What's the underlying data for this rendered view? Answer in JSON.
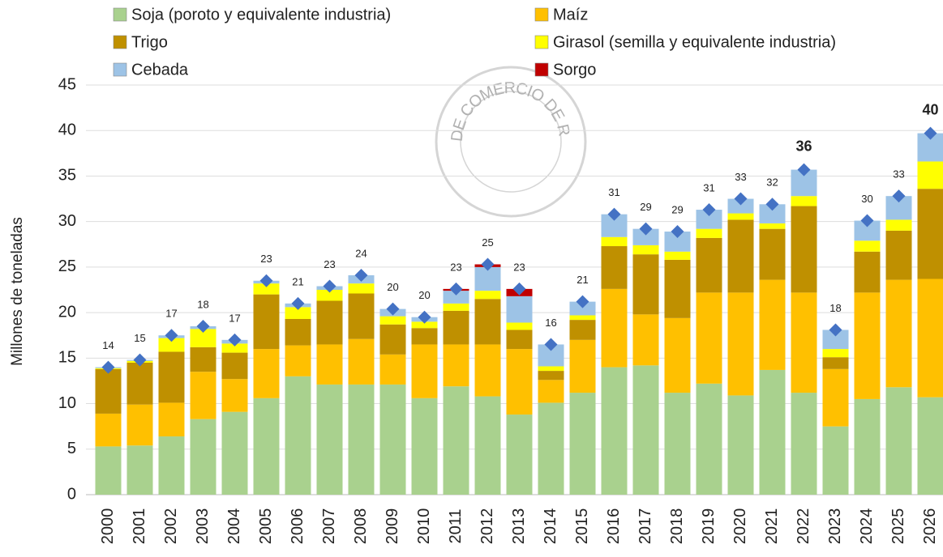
{
  "chart_data": {
    "type": "stacked_bar",
    "y_label": "Millones de toneladas",
    "watermark": "BOLSA DE COMERCIO DE ROSARIO",
    "categories": [
      "2000",
      "2001",
      "2002",
      "2003",
      "2004",
      "2005",
      "2006",
      "2007",
      "2008",
      "2009",
      "2010",
      "2011",
      "2012",
      "2013",
      "2014",
      "2015",
      "2016",
      "2017",
      "2018",
      "2019",
      "2020",
      "2021",
      "2022",
      "2023",
      "2024",
      "2025",
      "2026"
    ],
    "series": [
      {
        "name": "Soja (poroto y equivalente industria)",
        "color": "#a9d18e",
        "values": [
          5.3,
          5.4,
          6.4,
          8.3,
          9.1,
          10.6,
          13.0,
          12.1,
          12.1,
          12.1,
          10.6,
          11.9,
          10.8,
          8.8,
          10.1,
          11.2,
          14.0,
          14.2,
          11.2,
          12.2,
          10.9,
          13.7,
          11.2,
          7.5,
          10.5,
          11.8,
          10.7
        ]
      },
      {
        "name": "Maíz",
        "color": "#ffc000",
        "values": [
          3.6,
          4.5,
          3.7,
          5.2,
          3.6,
          5.4,
          3.4,
          4.4,
          5.0,
          3.3,
          5.9,
          4.6,
          5.7,
          7.2,
          2.5,
          5.8,
          8.6,
          5.6,
          8.2,
          10.0,
          11.3,
          9.9,
          11.0,
          6.3,
          11.7,
          11.8,
          13.0
        ]
      },
      {
        "name": "Trigo",
        "color": "#bf9000",
        "values": [
          4.9,
          4.6,
          5.6,
          2.7,
          2.9,
          6.0,
          2.9,
          4.8,
          5.0,
          3.3,
          1.8,
          3.7,
          5.0,
          2.1,
          1.0,
          2.2,
          4.7,
          6.6,
          6.4,
          6.0,
          8.0,
          5.6,
          9.5,
          1.3,
          4.5,
          5.4,
          9.9
        ]
      },
      {
        "name": "Girasol (semilla y equivalente industria)",
        "color": "#ffff00",
        "values": [
          0.1,
          0.2,
          1.5,
          2.0,
          1.0,
          1.2,
          1.3,
          1.2,
          1.1,
          0.9,
          0.7,
          0.8,
          0.9,
          0.8,
          0.5,
          0.5,
          1.0,
          1.0,
          0.9,
          1.0,
          0.7,
          0.6,
          1.1,
          0.9,
          1.2,
          1.2,
          3.0
        ]
      },
      {
        "name": "Cebada",
        "color": "#9dc3e6",
        "values": [
          0.1,
          0.1,
          0.3,
          0.3,
          0.4,
          0.3,
          0.4,
          0.4,
          0.9,
          0.8,
          0.5,
          1.4,
          2.6,
          2.9,
          2.4,
          1.5,
          2.5,
          1.8,
          2.2,
          2.1,
          1.6,
          2.1,
          2.9,
          2.1,
          2.2,
          2.6,
          3.1
        ]
      },
      {
        "name": "Sorgo",
        "color": "#c00000",
        "values": [
          0,
          0,
          0,
          0,
          0,
          0,
          0,
          0,
          0,
          0,
          0,
          0.2,
          0.3,
          0.8,
          0,
          0,
          0,
          0,
          0,
          0,
          0,
          0,
          0,
          0,
          0,
          0,
          0
        ]
      }
    ],
    "totals": {
      "color": "#4472c4",
      "values": [
        14.0,
        14.8,
        17.5,
        18.5,
        17.0,
        23.5,
        21.0,
        22.9,
        24.1,
        20.4,
        19.5,
        22.6,
        25.3,
        22.6,
        16.5,
        21.2,
        30.8,
        29.2,
        28.9,
        31.3,
        32.5,
        31.9,
        35.7,
        18.1,
        30.1,
        32.8,
        39.7
      ],
      "value_labels": [
        "14",
        "15",
        "17",
        "18",
        "17",
        "23",
        "21",
        "23",
        "24",
        "20",
        "20",
        "23",
        "25",
        "23",
        "16",
        "21",
        "31",
        "29",
        "29",
        "31",
        "33",
        "32",
        "36",
        "18",
        "30",
        "33",
        "40"
      ],
      "bold_labels": [
        false,
        false,
        false,
        false,
        false,
        false,
        false,
        false,
        false,
        false,
        false,
        false,
        false,
        false,
        false,
        false,
        false,
        false,
        false,
        false,
        false,
        false,
        true,
        false,
        false,
        false,
        true
      ]
    },
    "ylim": [
      0,
      45
    ],
    "yticks": [
      0,
      5,
      10,
      15,
      20,
      25,
      30,
      35,
      40,
      45
    ],
    "grid": true
  }
}
